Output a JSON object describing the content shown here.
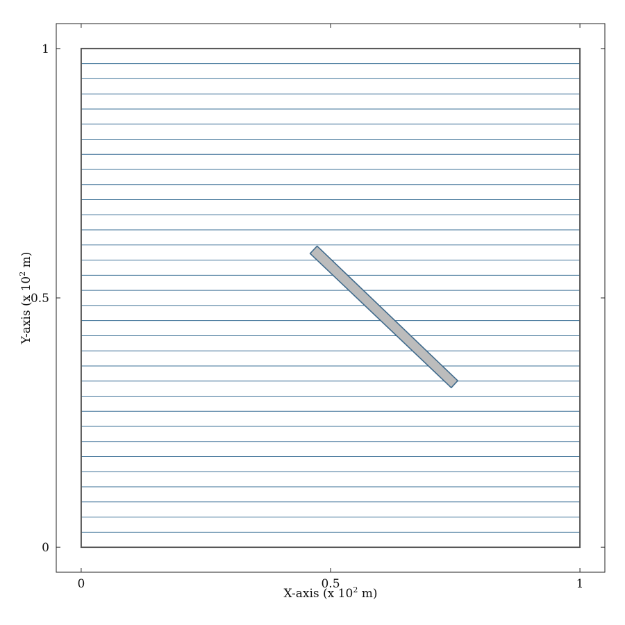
{
  "chart_data": {
    "type": "line",
    "xlabel_main": "X-axis (x 10",
    "xlabel_exp": "2",
    "xlabel_tail": " m)",
    "ylabel_main": "Y-axis (x 10",
    "ylabel_exp": "2",
    "ylabel_tail": " m)",
    "xlim": [
      -0.05,
      1.05
    ],
    "ylim": [
      -0.05,
      1.05
    ],
    "xticks": [
      0,
      0.5,
      1
    ],
    "xtick_labels": [
      "0",
      "0.5",
      "1"
    ],
    "yticks": [
      0,
      0.5,
      1
    ],
    "ytick_labels": [
      "0",
      "0.5",
      "1"
    ],
    "grid": false,
    "domain": {
      "x": [
        0,
        1
      ],
      "y": [
        0,
        1
      ]
    },
    "horizontal_lines_y": [
      0.0303,
      0.0606,
      0.0909,
      0.1212,
      0.1515,
      0.1818,
      0.2121,
      0.2424,
      0.2727,
      0.303,
      0.3333,
      0.3636,
      0.3939,
      0.4242,
      0.4545,
      0.4848,
      0.5152,
      0.5455,
      0.5758,
      0.6061,
      0.6364,
      0.6667,
      0.697,
      0.7273,
      0.7576,
      0.7879,
      0.8182,
      0.8485,
      0.8788,
      0.9091,
      0.9394,
      0.9697
    ],
    "fracture_polygon": [
      [
        0.459,
        0.589
      ],
      [
        0.473,
        0.604
      ],
      [
        0.755,
        0.334
      ],
      [
        0.742,
        0.32
      ]
    ],
    "colors": {
      "lines": "#3a6f95",
      "fracture_fill": "#bcbcbc",
      "fracture_edge": "#3f6a8c",
      "domain_edge": "#555555",
      "frame": "#222222"
    }
  }
}
